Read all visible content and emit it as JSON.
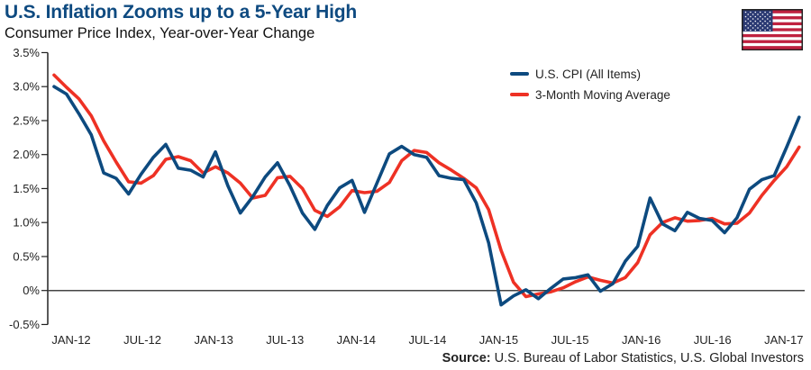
{
  "title": "U.S. Inflation Zooms up to a 5-Year High",
  "subtitle": "Consumer Price Index, Year-over-Year Change",
  "source_label": "Source:",
  "source_text": "U.S. Bureau of Labor Statistics, U.S. Global Investors",
  "flag_icon": "us-flag",
  "chart_data": {
    "type": "line",
    "title": "U.S. Inflation Zooms up to a 5-Year High",
    "subtitle": "Consumer Price Index, Year-over-Year Change",
    "x_start": "JAN-12",
    "x_end": "JAN-17",
    "frequency": "monthly",
    "x_tick_labels": [
      "JAN-12",
      "JUL-12",
      "JAN-13",
      "JUL-13",
      "JAN-14",
      "JUL-14",
      "JAN-15",
      "JUL-15",
      "JAN-16",
      "JUL-16",
      "JAN-17"
    ],
    "y_tick_labels": [
      "3.5%",
      "3.0%",
      "2.5%",
      "2.0%",
      "1.5%",
      "1.0%",
      "0.5%",
      "0%",
      "-0.5%"
    ],
    "y_ticks": [
      3.5,
      3.0,
      2.5,
      2.0,
      1.5,
      1.0,
      0.5,
      0,
      -0.5
    ],
    "ylim": [
      -0.5,
      3.5
    ],
    "grid": false,
    "legend_position": "top-center",
    "series": [
      {
        "name": "U.S. CPI (All Items)",
        "color": "#0d4a7f",
        "values": [
          3.0,
          2.89,
          2.6,
          2.29,
          1.73,
          1.65,
          1.42,
          1.71,
          1.96,
          2.15,
          1.8,
          1.77,
          1.67,
          2.04,
          1.54,
          1.14,
          1.38,
          1.67,
          1.88,
          1.54,
          1.14,
          0.9,
          1.25,
          1.51,
          1.62,
          1.15,
          1.58,
          2.01,
          2.12,
          2.0,
          1.96,
          1.69,
          1.65,
          1.63,
          1.29,
          0.7,
          -0.21,
          -0.08,
          0.01,
          -0.12,
          0.03,
          0.17,
          0.19,
          0.23,
          -0.01,
          0.1,
          0.43,
          0.65,
          1.36,
          0.98,
          0.88,
          1.15,
          1.06,
          1.03,
          0.85,
          1.07,
          1.49,
          1.63,
          1.69,
          2.11,
          2.55
        ]
      },
      {
        "name": "3-Month Moving Average",
        "color": "#ee3124",
        "values": [
          3.17,
          2.99,
          2.82,
          2.57,
          2.2,
          1.89,
          1.6,
          1.58,
          1.69,
          1.93,
          1.97,
          1.91,
          1.73,
          1.82,
          1.73,
          1.58,
          1.36,
          1.4,
          1.66,
          1.68,
          1.5,
          1.18,
          1.09,
          1.23,
          1.47,
          1.44,
          1.46,
          1.59,
          1.91,
          2.06,
          2.03,
          1.88,
          1.77,
          1.65,
          1.51,
          1.19,
          0.59,
          0.12,
          -0.09,
          -0.05,
          -0.02,
          0.04,
          0.13,
          0.2,
          0.15,
          0.11,
          0.19,
          0.41,
          0.82,
          1.0,
          1.07,
          1.02,
          1.03,
          1.06,
          0.98,
          0.99,
          1.14,
          1.4,
          1.62,
          1.82,
          2.11
        ]
      }
    ]
  }
}
